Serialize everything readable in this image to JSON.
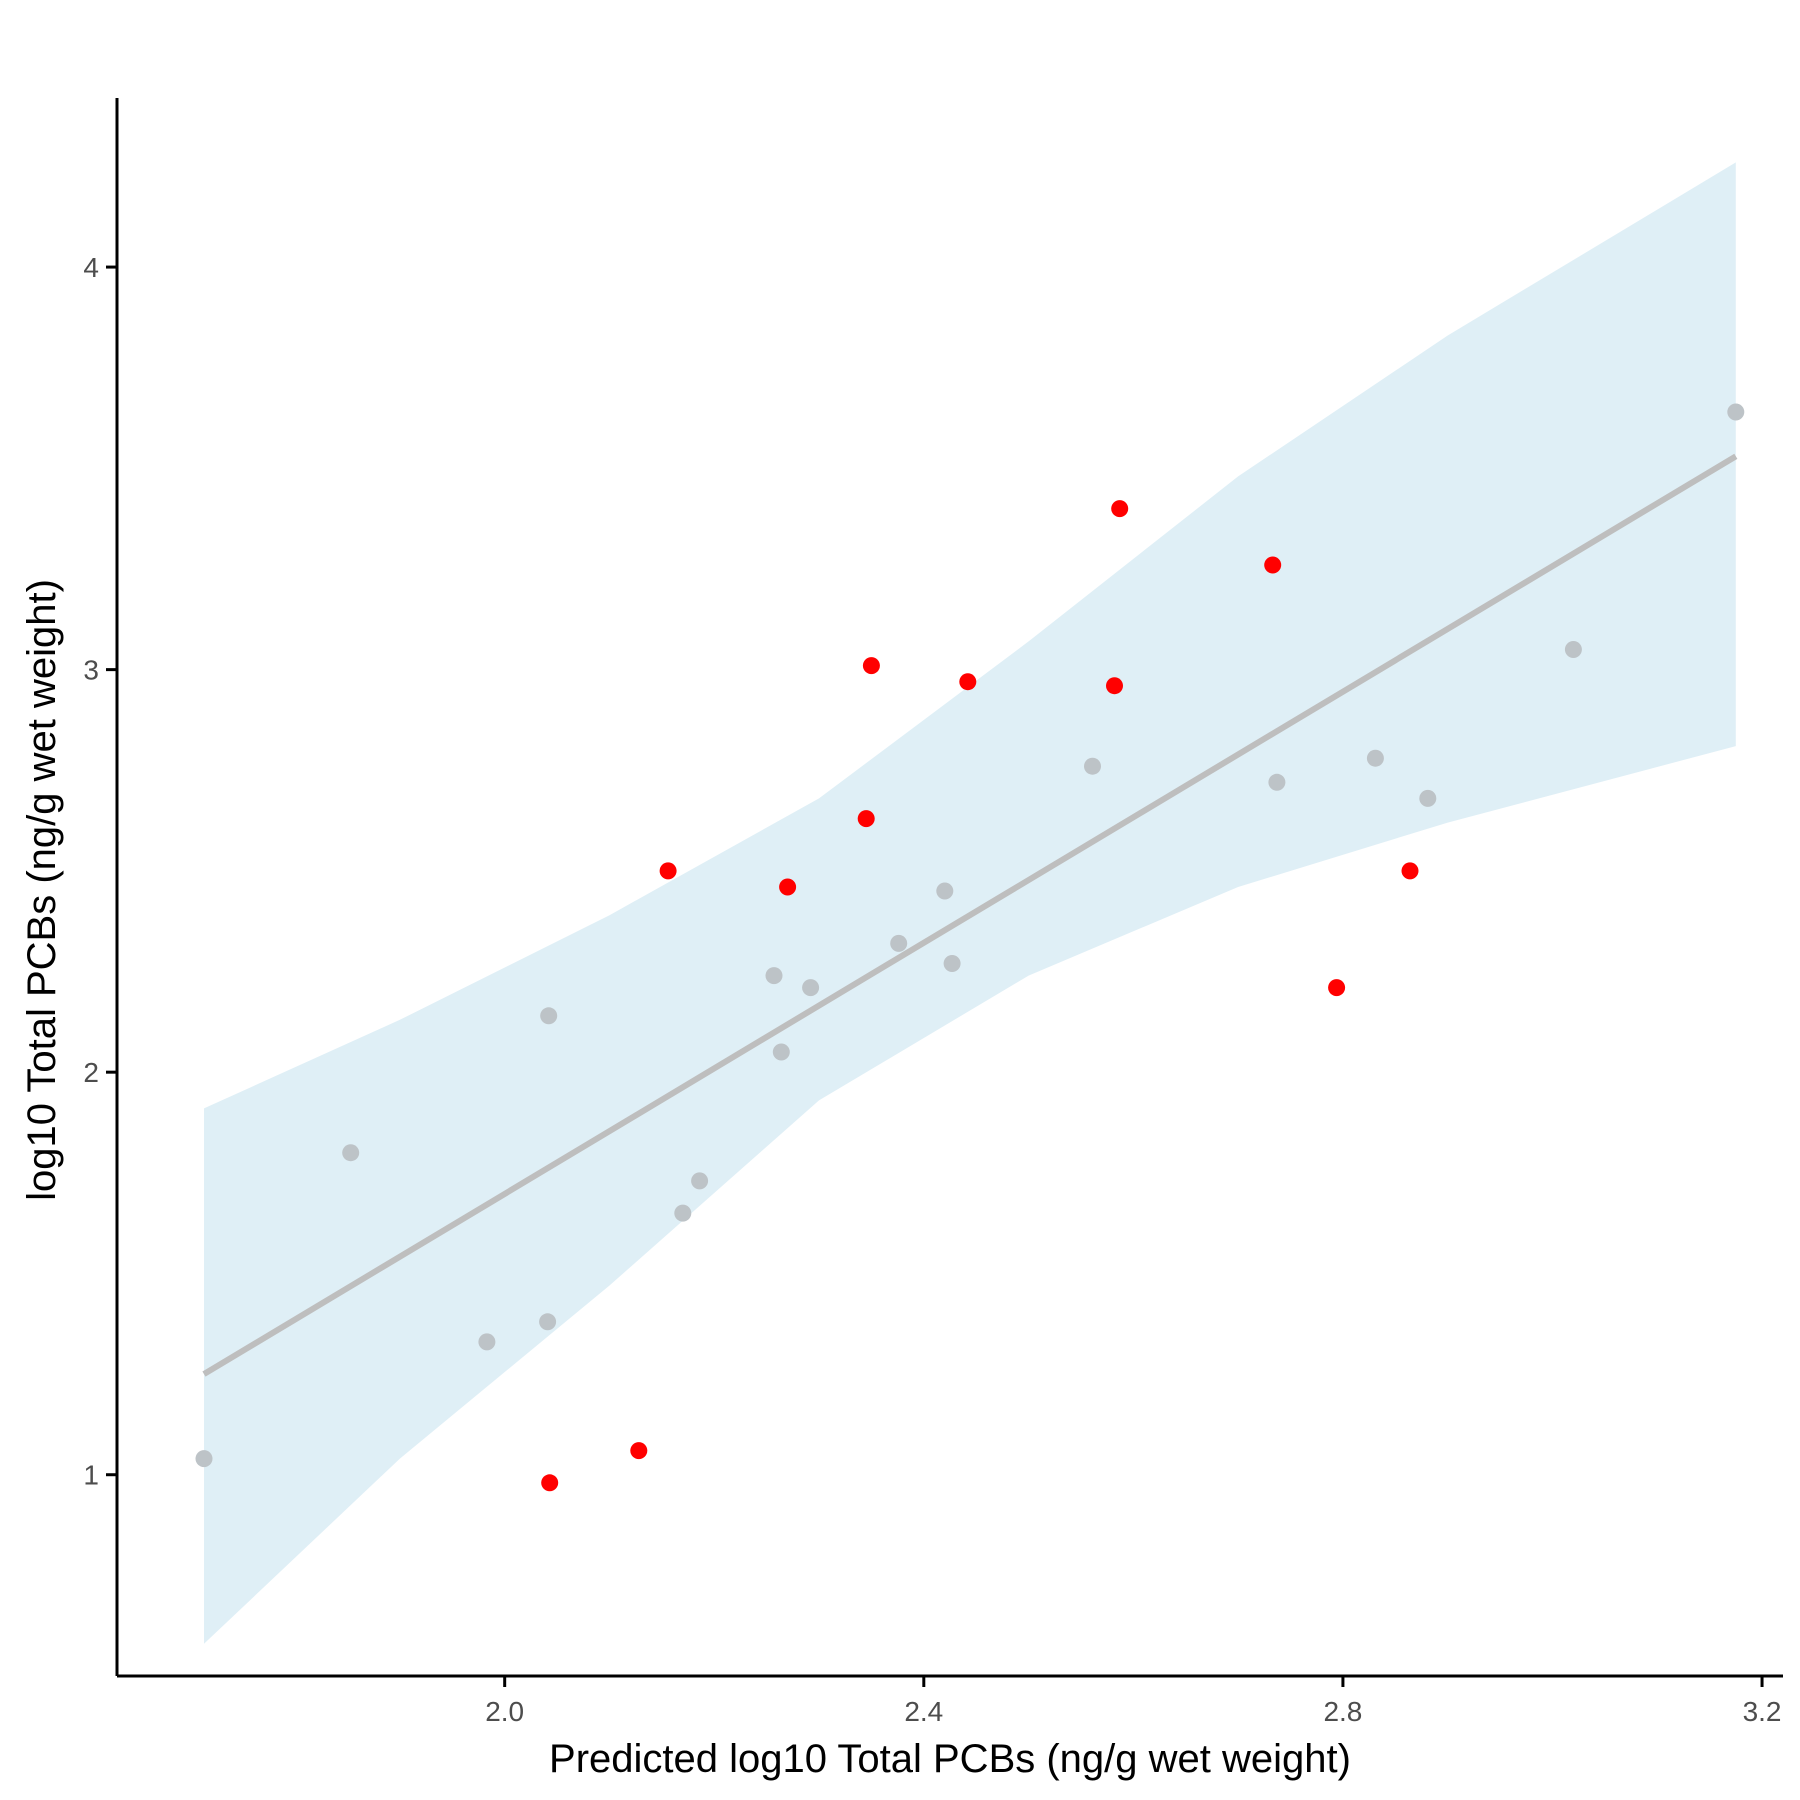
{
  "chart_data": {
    "type": "scatter",
    "xlabel": "Predicted log10 Total PCBs (ng/g wet weight)",
    "ylabel": "log10 Total PCBs (ng/g wet weight)",
    "xlim": [
      1.63,
      3.22
    ],
    "ylim": [
      0.5,
      4.42
    ],
    "x_ticks": [
      2.0,
      2.4,
      2.8,
      3.2
    ],
    "x_tick_labels": [
      "2.0",
      "2.4",
      "2.8",
      "3.2"
    ],
    "y_ticks": [
      1,
      2,
      3,
      4
    ],
    "y_tick_labels": [
      "1",
      "2",
      "3",
      "4"
    ],
    "grid": false,
    "colors": {
      "gray_points": "#bdc3c7",
      "red_points": "#ff0000",
      "fit_line": "#bebebe",
      "confidence_band": "#dfeff6",
      "axis": "#000000"
    },
    "fit_line": {
      "x": [
        1.713,
        3.175
      ],
      "y": [
        1.25,
        3.53
      ]
    },
    "confidence_band": {
      "x": [
        1.713,
        1.9,
        2.1,
        2.3,
        2.5,
        2.7,
        2.9,
        3.175
      ],
      "upper": [
        1.91,
        2.13,
        2.39,
        2.68,
        3.07,
        3.48,
        3.83,
        4.26
      ],
      "lower": [
        0.58,
        1.04,
        1.47,
        1.93,
        2.24,
        2.46,
        2.62,
        2.81
      ]
    },
    "series": [
      {
        "color": "#bdc3c7",
        "points": [
          [
            1.713,
            1.04
          ],
          [
            1.853,
            1.8
          ],
          [
            1.983,
            1.33
          ],
          [
            2.042,
            2.14
          ],
          [
            2.041,
            1.38
          ],
          [
            2.17,
            1.65
          ],
          [
            2.186,
            1.73
          ],
          [
            2.257,
            2.24
          ],
          [
            2.264,
            2.05
          ],
          [
            2.292,
            2.21
          ],
          [
            2.376,
            2.32
          ],
          [
            2.42,
            2.45
          ],
          [
            2.427,
            2.27
          ],
          [
            2.561,
            2.76
          ],
          [
            2.737,
            2.72
          ],
          [
            2.831,
            2.78
          ],
          [
            2.881,
            2.68
          ],
          [
            3.02,
            3.05
          ],
          [
            3.175,
            3.64
          ]
        ]
      },
      {
        "color": "#ff0000",
        "points": [
          [
            2.043,
            0.98
          ],
          [
            2.128,
            1.06
          ],
          [
            2.156,
            2.5
          ],
          [
            2.27,
            2.46
          ],
          [
            2.345,
            2.63
          ],
          [
            2.35,
            3.01
          ],
          [
            2.442,
            2.97
          ],
          [
            2.587,
            3.4
          ],
          [
            2.582,
            2.96
          ],
          [
            2.733,
            3.26
          ],
          [
            2.794,
            2.21
          ],
          [
            2.864,
            2.5
          ]
        ]
      }
    ]
  }
}
